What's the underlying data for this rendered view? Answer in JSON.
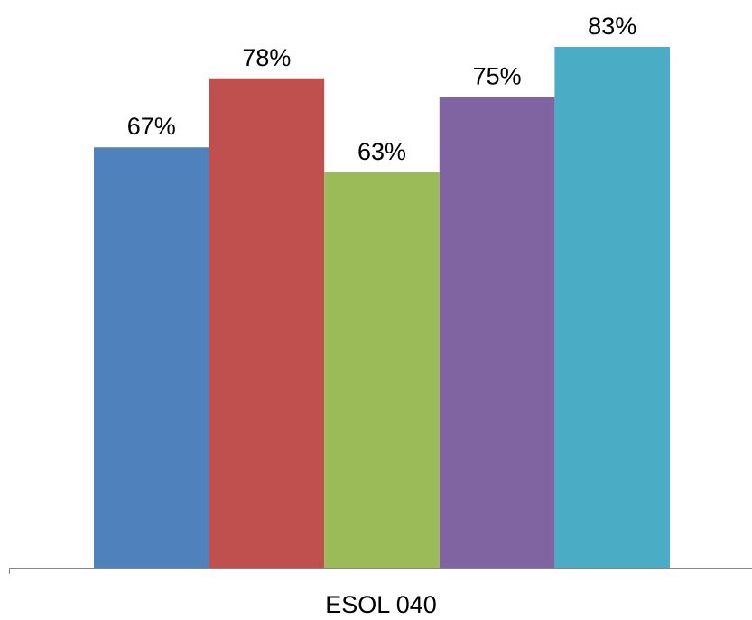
{
  "chart_data": {
    "type": "bar",
    "categories": [
      "ESOL 040"
    ],
    "series": [
      {
        "values": [
          67
        ],
        "color": "#4F81BD",
        "label": "67%"
      },
      {
        "values": [
          78
        ],
        "color": "#C0504D",
        "label": "78%"
      },
      {
        "values": [
          63
        ],
        "color": "#9BBB59",
        "label": "63%"
      },
      {
        "values": [
          75
        ],
        "color": "#8064A2",
        "label": "75%"
      },
      {
        "values": [
          83
        ],
        "color": "#4BACC6",
        "label": "83%"
      }
    ],
    "ylim": [
      0,
      83
    ],
    "grid": false,
    "legend": "none"
  }
}
